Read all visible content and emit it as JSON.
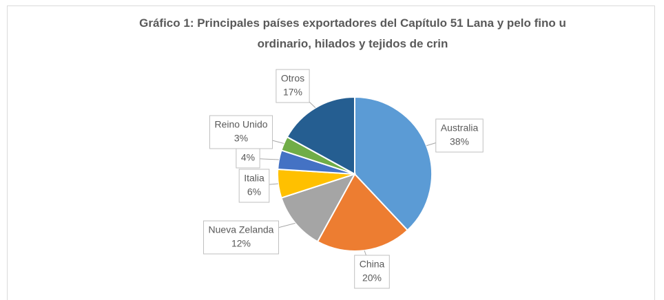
{
  "chart_data": {
    "type": "pie",
    "title": "Gráfico 1: Principales países exportadores del Capítulo 51 Lana y pelo fino u ordinario, hilados y tejidos de crin",
    "categories": [
      "Australia",
      "China",
      "Nueva Zelanda",
      "Italia",
      null,
      "Reino Unido",
      "Otros"
    ],
    "values": [
      38,
      20,
      12,
      6,
      4,
      3,
      17
    ],
    "value_labels": [
      "38%",
      "20%",
      "12%",
      "6%",
      "4%",
      "3%",
      "17%"
    ],
    "colors": [
      "#5b9bd5",
      "#ed7d31",
      "#a5a5a5",
      "#ffc000",
      "#4472c4",
      "#70ad47",
      "#255e91"
    ]
  }
}
